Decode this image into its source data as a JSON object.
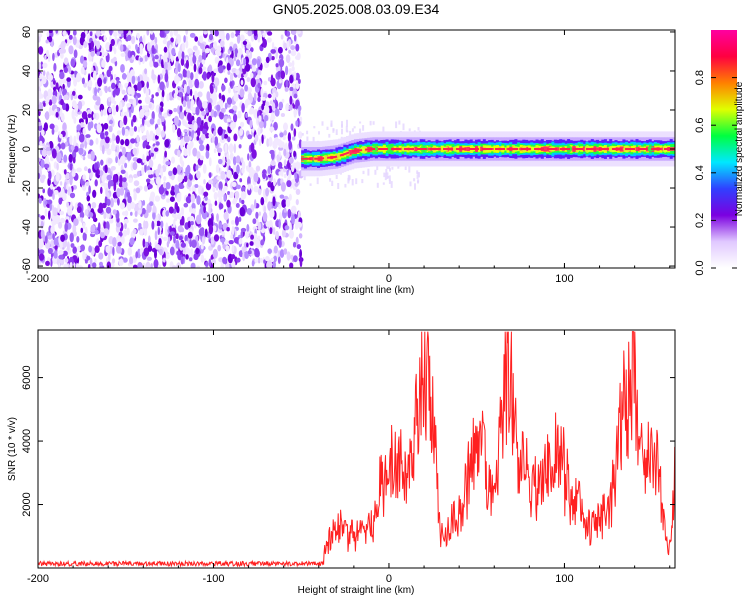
{
  "chart_data": [
    {
      "type": "heatmap",
      "title": "GN05.2025.008.03.09.E34",
      "xlabel": "Height of straight line (km)",
      "ylabel": "Frequency (Hz)",
      "xlim": [
        -200,
        163
      ],
      "ylim": [
        -61,
        61
      ],
      "xticks": [
        -200,
        -100,
        0,
        100
      ],
      "yticks": [
        60,
        40,
        20,
        0,
        -20,
        -40,
        -60
      ],
      "noise_region_x": [
        -200,
        -50
      ],
      "signal_onset_x": -50,
      "signal_track": [
        {
          "x": -50,
          "freq": -5
        },
        {
          "x": -40,
          "freq": -5
        },
        {
          "x": -30,
          "freq": -4
        },
        {
          "x": -20,
          "freq": -1
        },
        {
          "x": -10,
          "freq": 0
        },
        {
          "x": 0,
          "freq": 0
        },
        {
          "x": 50,
          "freq": 0
        },
        {
          "x": 100,
          "freq": 0
        },
        {
          "x": 163,
          "freq": 0
        }
      ],
      "colorbar": {
        "label": "Normalized spectral amplitude",
        "range": [
          0,
          1
        ],
        "ticks": [
          "0.0",
          "0.2",
          "0.4",
          "0.6",
          "0.8"
        ],
        "colors": [
          "#ffffff",
          "#e0c8ff",
          "#7b00e0",
          "#3040ff",
          "#00e8ff",
          "#00ff40",
          "#e0ff00",
          "#ff8000",
          "#ff0040",
          "#ff00a0"
        ]
      }
    },
    {
      "type": "line",
      "xlabel": "Height of straight line (km)",
      "ylabel": "SNR (10 * v/v)",
      "xlim": [
        -200,
        163
      ],
      "ylim": [
        0,
        7500
      ],
      "xticks": [
        -200,
        -100,
        0,
        100
      ],
      "yticks": [
        2000,
        4000,
        6000
      ],
      "color": "#ff2020",
      "noise_floor": {
        "x_range": [
          -200,
          -37
        ],
        "approx": 150
      },
      "x": [
        -37,
        -30,
        -20,
        -10,
        0,
        10,
        20,
        25,
        30,
        40,
        50,
        60,
        68,
        75,
        85,
        95,
        105,
        115,
        125,
        135,
        140,
        145,
        150,
        160,
        163
      ],
      "y": [
        600,
        1500,
        1100,
        1600,
        3800,
        3300,
        7600,
        5200,
        1000,
        1800,
        4500,
        2500,
        7200,
        3500,
        2800,
        4000,
        2500,
        1500,
        2000,
        6200,
        6900,
        3200,
        4300,
        700,
        2900
      ]
    }
  ]
}
